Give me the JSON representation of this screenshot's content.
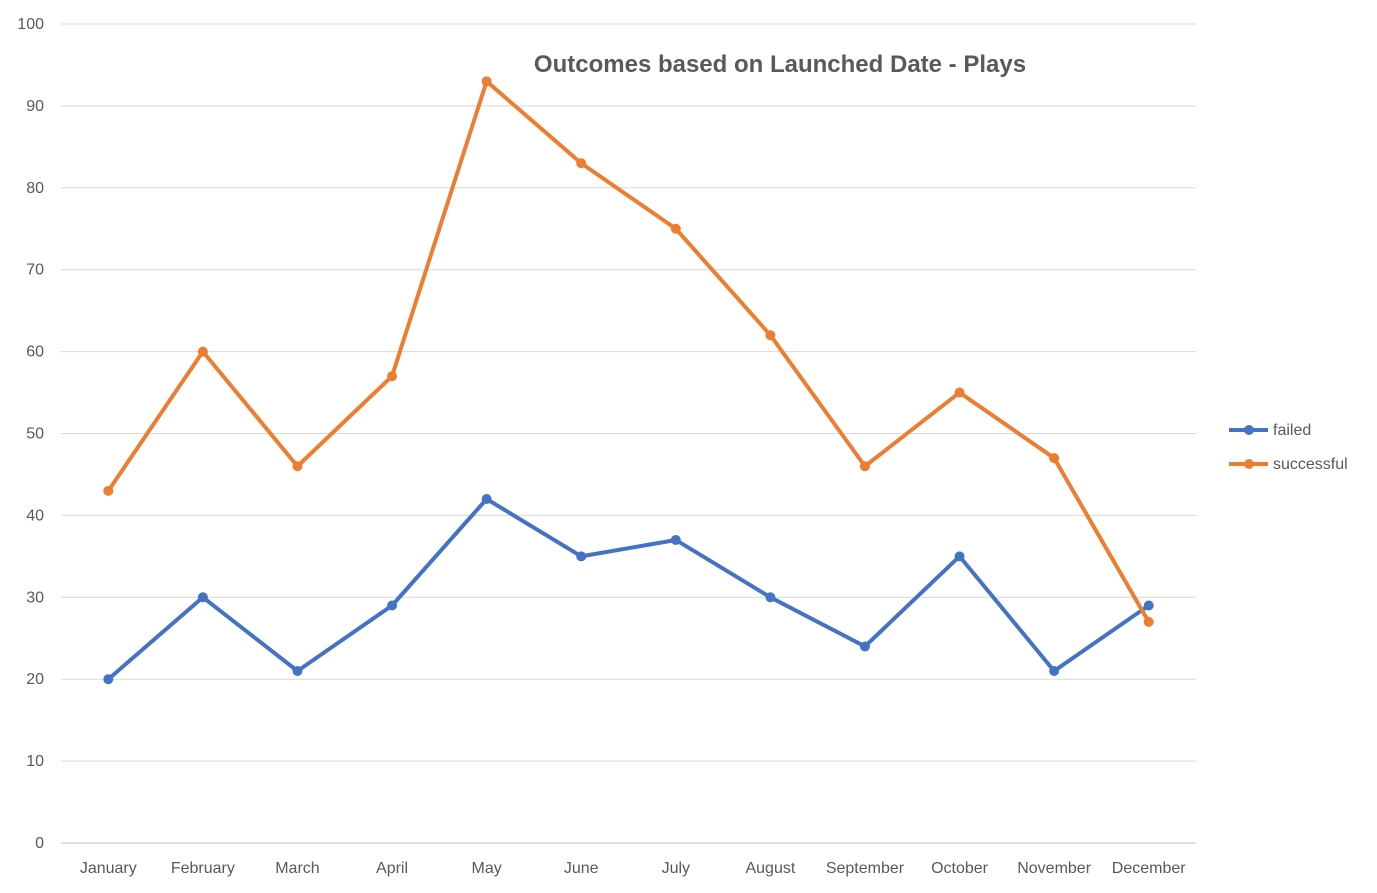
{
  "chart_data": {
    "type": "line",
    "title": "Outcomes based on Launched Date - Plays",
    "xlabel": "",
    "ylabel": "",
    "categories": [
      "January",
      "February",
      "March",
      "April",
      "May",
      "June",
      "July",
      "August",
      "September",
      "October",
      "November",
      "December"
    ],
    "series": [
      {
        "name": "failed",
        "color": "#4472c4",
        "values": [
          20,
          30,
          21,
          29,
          42,
          35,
          37,
          30,
          24,
          35,
          21,
          29
        ]
      },
      {
        "name": "successful",
        "color": "#ed7d31",
        "values": [
          43,
          60,
          46,
          57,
          93,
          83,
          75,
          62,
          46,
          55,
          47,
          27
        ]
      }
    ],
    "ylim": [
      0,
      100
    ],
    "yticks": [
      0,
      10,
      20,
      30,
      40,
      50,
      60,
      70,
      80,
      90,
      100
    ],
    "grid": true,
    "legend_position": "right"
  }
}
